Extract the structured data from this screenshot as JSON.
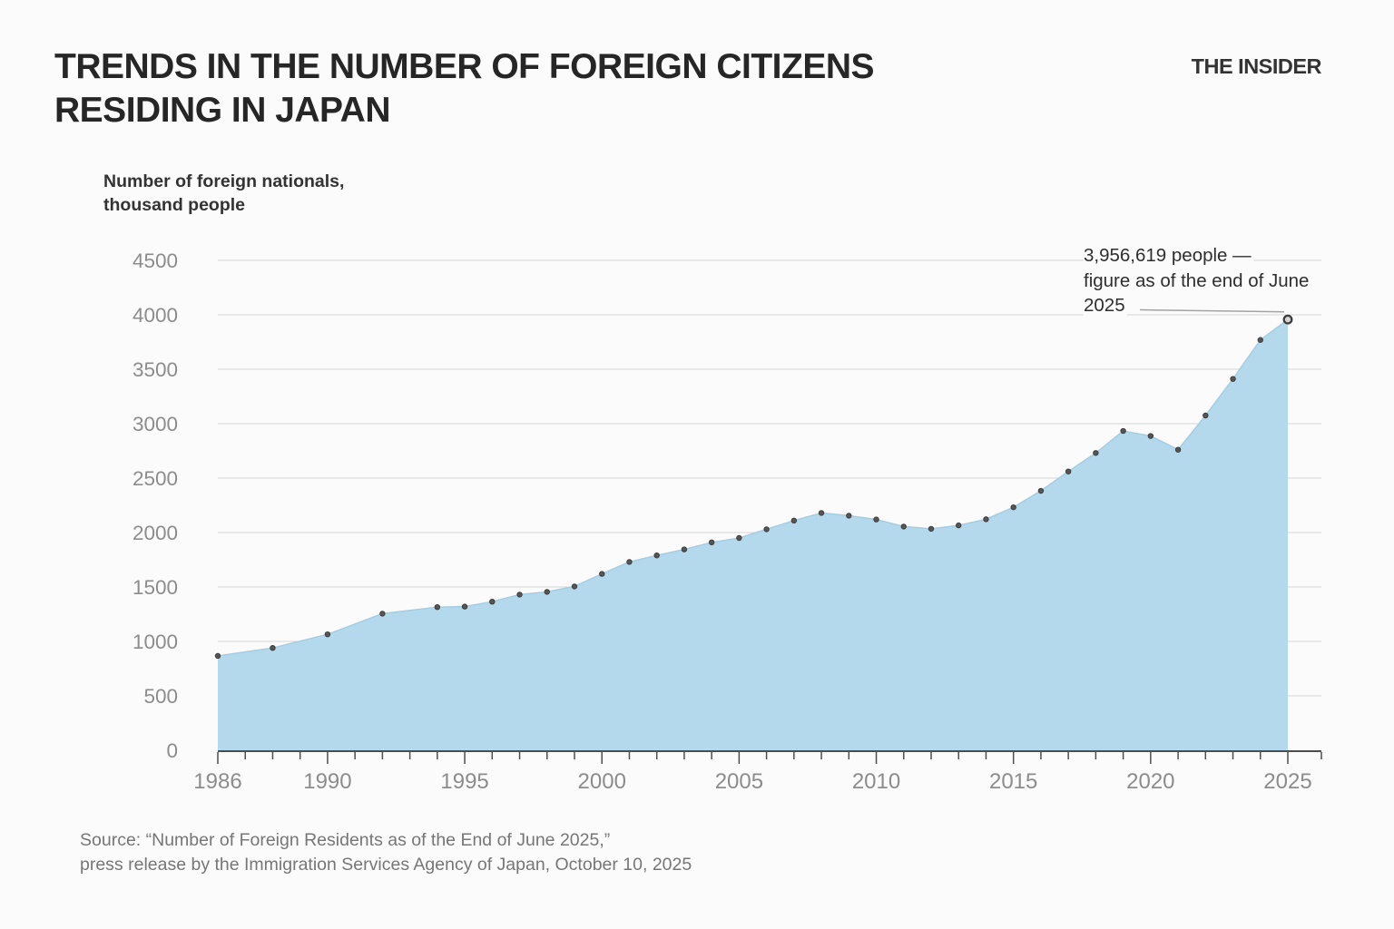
{
  "header": {
    "title": "TRENDS IN THE NUMBER OF FOREIGN CITIZENS RESIDING IN JAPAN",
    "brand": "THE INSIDER"
  },
  "chart_data": {
    "type": "area",
    "title": "Trends in the number of foreign citizens residing in Japan",
    "unit_label": "Number of foreign nationals,\nthousand people",
    "x": [
      1986,
      1988,
      1990,
      1992,
      1994,
      1995,
      1996,
      1997,
      1998,
      1999,
      2000,
      2001,
      2002,
      2003,
      2004,
      2005,
      2006,
      2007,
      2008,
      2009,
      2010,
      2011,
      2012,
      2013,
      2014,
      2015,
      2016,
      2017,
      2018,
      2019,
      2020,
      2021,
      2022,
      2023,
      2024,
      2025
    ],
    "values": [
      867,
      940,
      1065,
      1255,
      1315,
      1320,
      1365,
      1430,
      1455,
      1505,
      1620,
      1730,
      1790,
      1845,
      1910,
      1950,
      2030,
      2110,
      2180,
      2155,
      2120,
      2055,
      2034,
      2066,
      2122,
      2232,
      2383,
      2561,
      2731,
      2933,
      2887,
      2761,
      3075,
      3411,
      3769,
      3956.619
    ],
    "xlabel": "",
    "ylabel": "Number of foreign nationals, thousand people",
    "ylim": [
      0,
      4500
    ],
    "ytick_step": 500,
    "ytick_labels": [
      "0",
      "500",
      "1000",
      "1500",
      "2000",
      "2500",
      "3000",
      "3500",
      "4000",
      "4500"
    ],
    "xtick_labels": [
      1986,
      1990,
      1995,
      2000,
      2005,
      2010,
      2015,
      2020,
      2025
    ],
    "grid": "horizontal",
    "legend": "none",
    "annotation": {
      "text": "3,956,619 people —\nfigure as of the end of June\n2025",
      "target_x": 2025,
      "target_value": 3956.619
    },
    "colors": {
      "area": "#b5d9ec",
      "area_edge": "#a4cde2",
      "dot": "#565656",
      "dot_ring": "#3c3c3c",
      "grid": "#d6d6d6",
      "axis": "#4d4d4d",
      "tick_label": "#8c8c8c",
      "pointer": "#a3a3a3",
      "background": "#fbfbfb"
    }
  },
  "source": {
    "text": "Source: “Number of Foreign Residents as of the End of June 2025,”\npress release by the Immigration Services Agency of Japan, October 10, 2025"
  }
}
